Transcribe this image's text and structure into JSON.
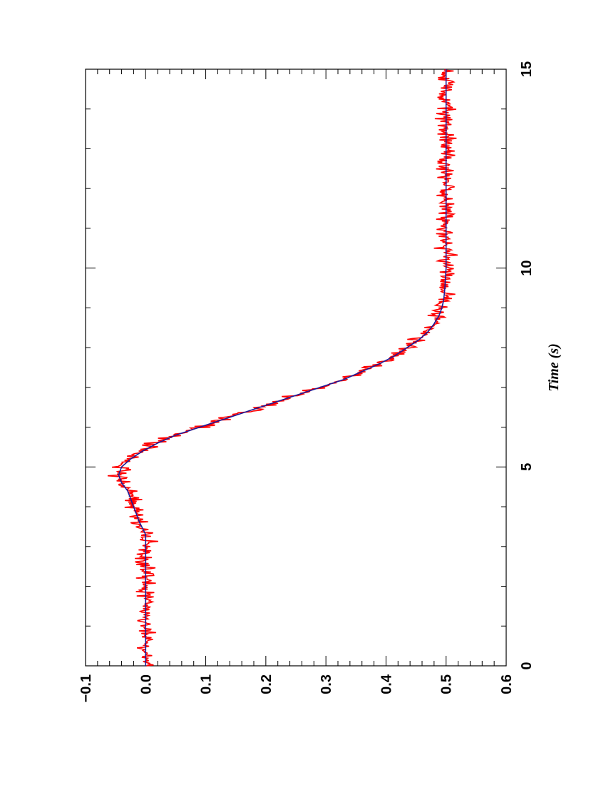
{
  "chart_data": {
    "type": "line",
    "title": "",
    "xlabel": "Time (s)",
    "ylabel": "",
    "xlim": [
      0,
      15
    ],
    "ylim": [
      -0.1,
      0.6
    ],
    "x_major_ticks": [
      0,
      5,
      10,
      15
    ],
    "x_tick_labels": [
      "0",
      "5",
      "10",
      "15"
    ],
    "x_minor_step": 1,
    "y_major_ticks": [
      -0.1,
      0.0,
      0.1,
      0.2,
      0.3,
      0.4,
      0.5,
      0.6
    ],
    "y_tick_labels": [
      "−0.1",
      "0.0",
      "0.1",
      "0.2",
      "0.3",
      "0.4",
      "0.5",
      "0.6"
    ],
    "y_minor_step": 0.02,
    "grid": false,
    "legend": "none",
    "orientation": "rotated 90 degrees counter-clockwise",
    "series": [
      {
        "color": "#ff0000",
        "style": "noisy measurement",
        "noise_amplitude": 0.012,
        "x": [
          0,
          0.5,
          1,
          1.5,
          2,
          2.5,
          3,
          3.3,
          3.6,
          3.8,
          4,
          4.2,
          4.4,
          4.6,
          4.8,
          5,
          5.2,
          5.4,
          5.6,
          5.8,
          6,
          6.2,
          6.4,
          6.6,
          6.8,
          7,
          7.2,
          7.4,
          7.6,
          7.8,
          8,
          8.2,
          8.4,
          8.6,
          8.8,
          9,
          9.2,
          9.5,
          10,
          11,
          12,
          13,
          14,
          15
        ],
        "y": [
          0.0,
          0.0,
          0.0,
          0.0,
          0.0,
          0.0,
          0.0,
          0.0,
          -0.01,
          -0.015,
          -0.02,
          -0.025,
          -0.03,
          -0.04,
          -0.045,
          -0.04,
          -0.025,
          -0.005,
          0.02,
          0.05,
          0.09,
          0.13,
          0.17,
          0.21,
          0.25,
          0.29,
          0.33,
          0.36,
          0.39,
          0.415,
          0.435,
          0.455,
          0.47,
          0.48,
          0.488,
          0.493,
          0.496,
          0.498,
          0.5,
          0.5,
          0.5,
          0.5,
          0.5,
          0.5
        ]
      },
      {
        "color": "#1a1a99",
        "style": "smooth fit",
        "x": [
          0,
          0.5,
          1,
          1.5,
          2,
          2.5,
          3,
          3.3,
          3.6,
          3.8,
          4,
          4.2,
          4.4,
          4.6,
          4.8,
          5,
          5.2,
          5.4,
          5.6,
          5.8,
          6,
          6.2,
          6.4,
          6.6,
          6.8,
          7,
          7.2,
          7.4,
          7.6,
          7.8,
          8,
          8.2,
          8.4,
          8.6,
          8.8,
          9,
          9.2,
          9.5,
          10,
          11,
          12,
          13,
          14,
          15
        ],
        "y": [
          0.0,
          0.0,
          0.0,
          0.0,
          0.0,
          0.0,
          0.0,
          0.0,
          -0.01,
          -0.015,
          -0.02,
          -0.025,
          -0.03,
          -0.04,
          -0.045,
          -0.04,
          -0.025,
          -0.005,
          0.02,
          0.05,
          0.09,
          0.13,
          0.17,
          0.21,
          0.25,
          0.29,
          0.33,
          0.36,
          0.39,
          0.415,
          0.435,
          0.455,
          0.47,
          0.48,
          0.488,
          0.493,
          0.496,
          0.498,
          0.5,
          0.5,
          0.5,
          0.5,
          0.5,
          0.5
        ]
      }
    ]
  }
}
